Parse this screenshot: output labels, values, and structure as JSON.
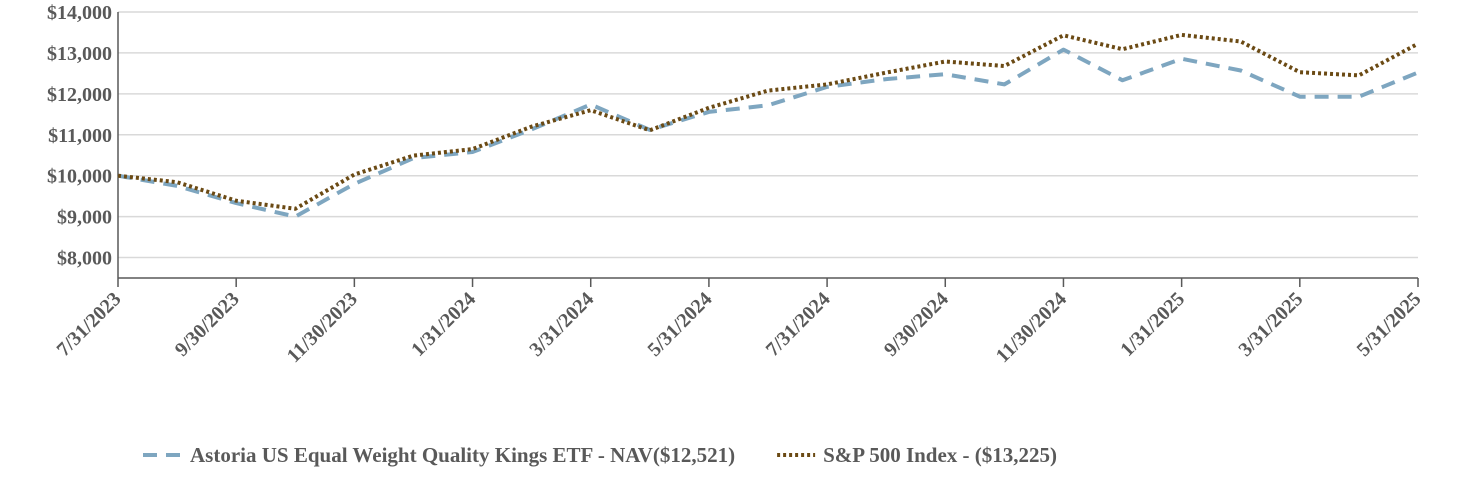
{
  "chart_data": {
    "type": "line",
    "title": "",
    "xlabel": "",
    "ylabel": "",
    "ylim": [
      7500,
      14000
    ],
    "yticks": [
      8000,
      9000,
      10000,
      11000,
      12000,
      13000,
      14000
    ],
    "ytick_labels": [
      "$8,000",
      "$9,000",
      "$10,000",
      "$11,000",
      "$12,000",
      "$13,000",
      "$14,000"
    ],
    "x": [
      "7/31/2023",
      "8/31/2023",
      "9/30/2023",
      "10/31/2023",
      "11/30/2023",
      "12/31/2023",
      "1/31/2024",
      "2/29/2024",
      "3/31/2024",
      "4/30/2024",
      "5/31/2024",
      "6/30/2024",
      "7/31/2024",
      "8/31/2024",
      "9/30/2024",
      "10/31/2024",
      "11/30/2024",
      "12/31/2024",
      "1/31/2025",
      "2/28/2025",
      "3/31/2025",
      "4/30/2025",
      "5/31/2025"
    ],
    "xtick_labels": [
      "7/31/2023",
      "9/30/2023",
      "11/30/2023",
      "1/31/2024",
      "3/31/2024",
      "5/31/2024",
      "7/31/2024",
      "9/30/2024",
      "11/30/2024",
      "1/31/2025",
      "3/31/2025",
      "5/31/2025"
    ],
    "grid": true,
    "legend_position": "bottom",
    "series": [
      {
        "name": "Astoria US Equal Weight Quality Kings ETF - NAV($12,521)",
        "color": "#7ea6c0",
        "style": "dashed",
        "values": [
          10000,
          9750,
          9330,
          9000,
          9800,
          10430,
          10580,
          11130,
          11740,
          11120,
          11560,
          11720,
          12170,
          12360,
          12480,
          12230,
          13080,
          12330,
          12860,
          12570,
          11930,
          11930,
          12521
        ]
      },
      {
        "name": "S&P 500 Index - ($13,225)",
        "color": "#6b4a14",
        "style": "dotted",
        "values": [
          10000,
          9840,
          9390,
          9190,
          10030,
          10490,
          10650,
          11200,
          11600,
          11110,
          11660,
          12080,
          12230,
          12520,
          12790,
          12680,
          13430,
          13090,
          13440,
          13280,
          12530,
          12450,
          13225
        ]
      }
    ]
  }
}
